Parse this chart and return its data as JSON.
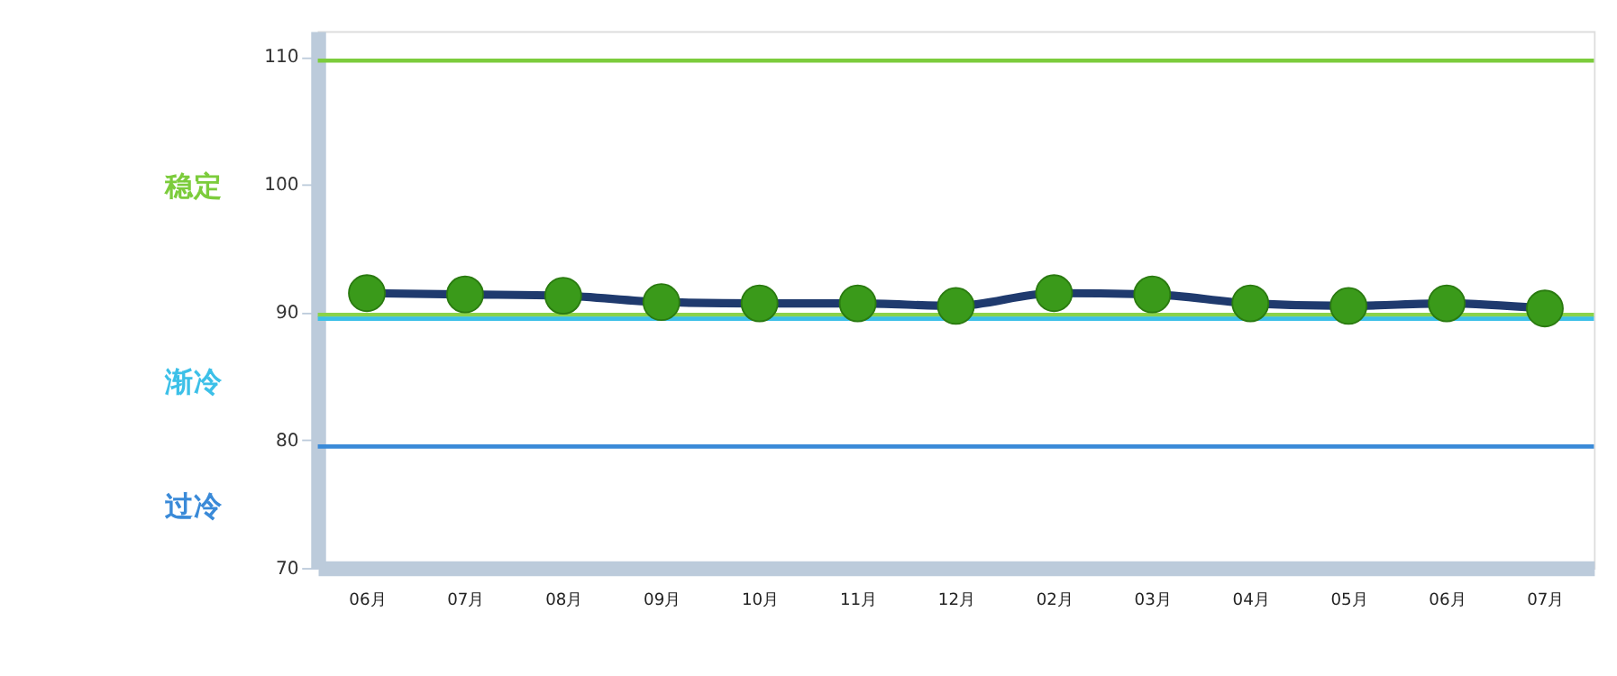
{
  "chart_data": {
    "type": "line",
    "categories": [
      "06月",
      "07月",
      "08月",
      "09月",
      "10月",
      "11月",
      "12月",
      "02月",
      "03月",
      "04月",
      "05月",
      "06月",
      "07月"
    ],
    "series": [
      {
        "color": "#1f3a6e",
        "values": [
          91.5,
          91.4,
          91.3,
          90.8,
          90.7,
          90.7,
          90.5,
          91.5,
          91.4,
          90.7,
          90.5,
          90.7,
          90.3
        ]
      }
    ],
    "marker": "circle",
    "ylim": [
      70,
      112
    ],
    "yticks": [
      70,
      80,
      90,
      100,
      110
    ],
    "grid": false,
    "ref_lines": [
      {
        "axis": "y",
        "value": 109.7,
        "color": "#7ccc3c"
      },
      {
        "axis": "y",
        "value": 89.8,
        "color": "#8ad24a"
      },
      {
        "axis": "y",
        "value": 89.5,
        "color": "#3cc0e8"
      },
      {
        "axis": "y",
        "value": 79.5,
        "color": "#3a8ad8"
      }
    ],
    "annotations": [
      "稳定",
      "渐冷",
      "过冷"
    ]
  }
}
